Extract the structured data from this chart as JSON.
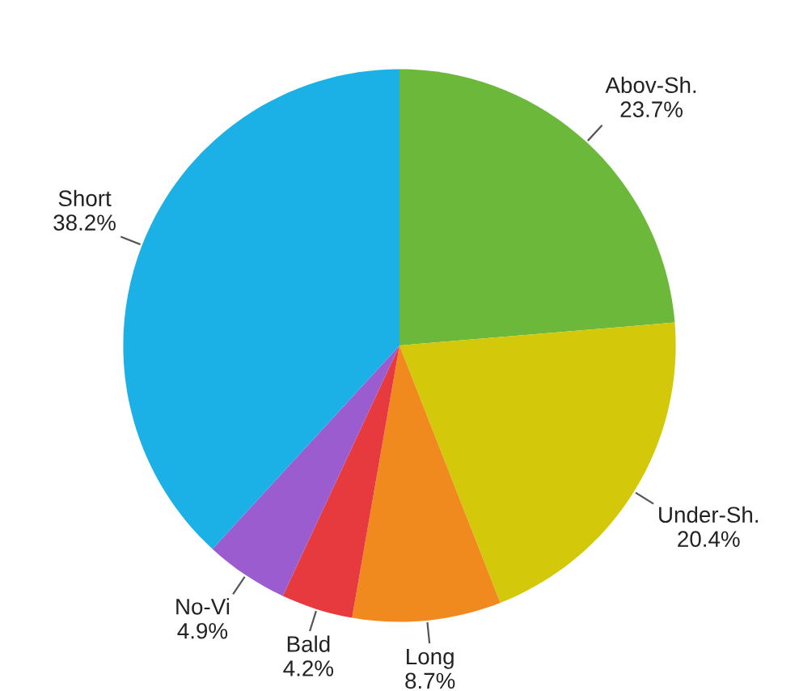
{
  "chart_data": {
    "type": "pie",
    "categories": [
      "Abov-Sh.",
      "Under-Sh.",
      "Long",
      "Bald",
      "No-Vi",
      "Short"
    ],
    "values": [
      23.7,
      20.4,
      8.7,
      4.2,
      4.9,
      38.2
    ],
    "value_labels": [
      "23.7%",
      "20.4%",
      "8.7%",
      "4.2%",
      "4.9%",
      "38.2%"
    ],
    "colors": [
      "#6cb83a",
      "#d3c90a",
      "#f08a1e",
      "#e63a3f",
      "#9a5ccf",
      "#1cb1e6"
    ]
  }
}
